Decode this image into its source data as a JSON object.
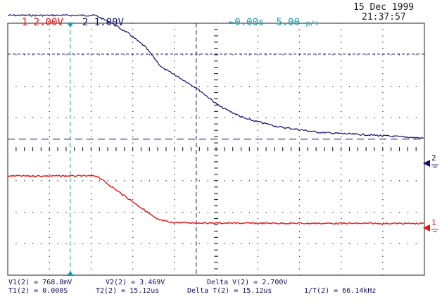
{
  "header": {
    "ch1": {
      "number": "1",
      "scale": "2.00V"
    },
    "ch2": {
      "number": "2",
      "scale": "1.00V"
    },
    "trigger_delay": "0.00s",
    "timebase_value": "5.00",
    "timebase_unit": "μ/s",
    "date": "15 Dec 1999",
    "time": "21:37:57"
  },
  "markers": {
    "ch1": "1",
    "ch2": "2"
  },
  "measurements": {
    "v1": "V1(2) = 768.8mV",
    "v2": "V2(2) = 3.469V",
    "delta_v": "Delta V(2) = 2.700V",
    "t1": "T1(2) = 0.000S",
    "t2": "T2(2) = 15.12us",
    "delta_t": "Delta T(2) = 15.12us",
    "inv_t": "1/T(2) = 66.14kHz"
  },
  "colors": {
    "ch1": "#ee1111",
    "ch2": "#101070",
    "cursor": "#1a9aa8",
    "grid": "#202020"
  },
  "chart_data": {
    "type": "line",
    "x_unit": "us",
    "x_range_us": [
      -7.5,
      42.5
    ],
    "trigger_at_us": 0,
    "cursor_time_us": [
      0,
      15.12
    ],
    "cursor_volt_ch2": [
      0.7688,
      3.469
    ],
    "series": [
      {
        "name": "1",
        "volts_per_div": 2.0,
        "x": [
          -7.5,
          0,
          3.2,
          5,
          7,
          9,
          10.4,
          12,
          15,
          20,
          30,
          42.5
        ],
        "y": [
          3.3,
          3.3,
          3.3,
          2.6,
          1.85,
          1.1,
          0.55,
          0.35,
          0.32,
          0.3,
          0.29,
          0.28
        ]
      },
      {
        "name": "2",
        "volts_per_div": 1.0,
        "x": [
          -7.5,
          0,
          3,
          5,
          7,
          9,
          11,
          13,
          15.12,
          18,
          21,
          25,
          30,
          36,
          42.5
        ],
        "y": [
          4.7,
          4.7,
          4.7,
          4.45,
          4.12,
          3.7,
          3.04,
          2.74,
          2.4,
          1.8,
          1.42,
          1.16,
          0.98,
          0.9,
          0.8
        ]
      }
    ]
  }
}
